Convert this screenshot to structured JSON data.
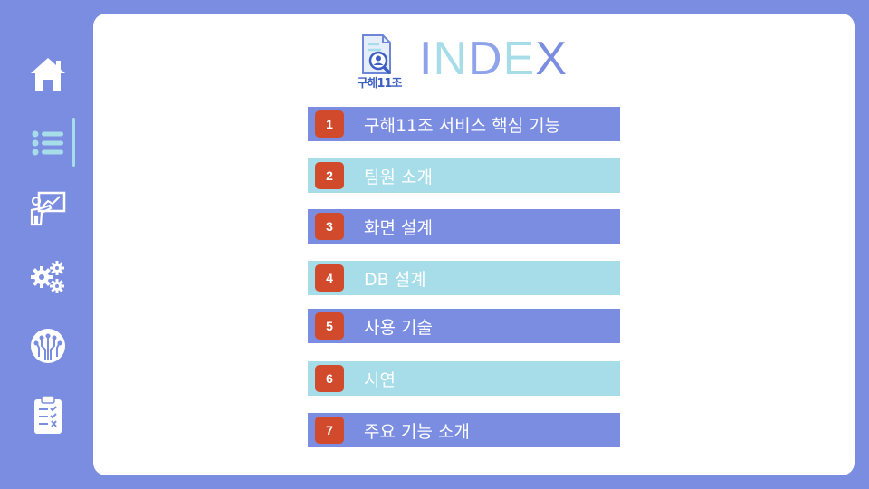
{
  "title_letters": [
    "I",
    "N",
    "D",
    "E",
    "X"
  ],
  "logo_text": "구해11조",
  "nav": [
    {
      "icon": "home-icon"
    },
    {
      "icon": "list-icon",
      "active": true
    },
    {
      "icon": "presentation-icon"
    },
    {
      "icon": "gears-icon"
    },
    {
      "icon": "circuit-brain-icon"
    },
    {
      "icon": "clipboard-checklist-icon"
    }
  ],
  "menu": [
    {
      "number": "1",
      "label": "구해11조 서비스 핵심 기능"
    },
    {
      "number": "2",
      "label": "팀원 소개"
    },
    {
      "number": "3",
      "label": "화면 설계"
    },
    {
      "number": "4",
      "label": "DB 설계"
    },
    {
      "number": "5",
      "label": "사용 기술"
    },
    {
      "number": "6",
      "label": "시연"
    },
    {
      "number": "7",
      "label": "주요 기능 소개"
    }
  ],
  "colors": {
    "background": "#7b8de0",
    "accent_cyan": "#a6dde8",
    "number_badge": "#d04a2b",
    "card": "#ffffff"
  }
}
